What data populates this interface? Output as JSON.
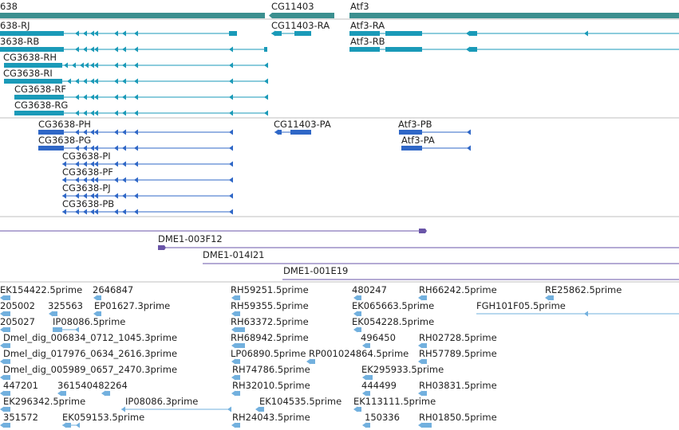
{
  "colors": {
    "gene": "#3b8f8f",
    "transcript": "#1a9ab8",
    "protein": "#2f67c7",
    "clone": "#6a55a8",
    "est": "#72b0de",
    "separator": "#bfbfbf"
  },
  "tracks": {
    "genes": {
      "features": [
        {
          "label": "638",
          "strand": "-"
        },
        {
          "label": "CG11403",
          "strand": "-"
        },
        {
          "label": "Atf3",
          "strand": "+"
        }
      ]
    },
    "transcripts": {
      "features": [
        {
          "label": "638-RJ",
          "strand": "-"
        },
        {
          "label": "3638-RB",
          "strand": "-"
        },
        {
          "label": "CG3638-RH",
          "strand": "-"
        },
        {
          "label": "CG3638-RI",
          "strand": "-"
        },
        {
          "label": "CG3638-RF",
          "strand": "-"
        },
        {
          "label": "CG3638-RG",
          "strand": "-"
        },
        {
          "label": "CG11403-RA",
          "strand": "-"
        },
        {
          "label": "Atf3-RA",
          "strand": "+"
        },
        {
          "label": "Atf3-RB",
          "strand": "+"
        }
      ]
    },
    "proteins": {
      "features": [
        {
          "label": "CG3638-PH",
          "strand": "-"
        },
        {
          "label": "CG3638-PG",
          "strand": "-"
        },
        {
          "label": "CG3638-PI",
          "strand": "-"
        },
        {
          "label": "CG3638-PF",
          "strand": "-"
        },
        {
          "label": "CG3638-PJ",
          "strand": "-"
        },
        {
          "label": "CG3638-PB",
          "strand": "-"
        },
        {
          "label": "CG11403-PA",
          "strand": "-"
        },
        {
          "label": "Atf3-PB",
          "strand": "+"
        },
        {
          "label": "Atf3-PA",
          "strand": "+"
        }
      ]
    },
    "clones": {
      "features": [
        {
          "label": "DME1-003F12",
          "strand": "+"
        },
        {
          "label": "DME1-014I21",
          "strand": "+"
        },
        {
          "label": "DME1-001E19",
          "strand": "+"
        }
      ]
    },
    "ests": {
      "features": [
        {
          "label": "EK154422.5prime"
        },
        {
          "label": "2646847"
        },
        {
          "label": "RH59251.5prime"
        },
        {
          "label": "480247"
        },
        {
          "label": "RH66242.5prime"
        },
        {
          "label": "RE25862.5prime"
        },
        {
          "label": "205002"
        },
        {
          "label": "325563"
        },
        {
          "label": "EP01627.3prime"
        },
        {
          "label": "RH59355.5prime"
        },
        {
          "label": "EK065663.5prime"
        },
        {
          "label": "FGH101F05.5prime"
        },
        {
          "label": "205027"
        },
        {
          "label": "IP08086.5prime"
        },
        {
          "label": "RH63372.5prime"
        },
        {
          "label": "EK054228.5prime"
        },
        {
          "label": "Dmel_dig_006834_0712_1045.3prime"
        },
        {
          "label": "RH68942.5prime"
        },
        {
          "label": "496450"
        },
        {
          "label": "RH02728.5prime"
        },
        {
          "label": "Dmel_dig_017976_0634_2616.3prime"
        },
        {
          "label": "LP06890.5prime"
        },
        {
          "label": "RP001024864.5prime"
        },
        {
          "label": "RH57789.5prime"
        },
        {
          "label": "Dmel_dig_005989_0657_2470.3prime"
        },
        {
          "label": "RH74786.5prime"
        },
        {
          "label": "EK295933.5prime"
        },
        {
          "label": "447201"
        },
        {
          "label": "361540482264"
        },
        {
          "label": "RH32010.5prime"
        },
        {
          "label": "444499"
        },
        {
          "label": "RH03831.5prime"
        },
        {
          "label": "EK296342.5prime"
        },
        {
          "label": "IP08086.3prime"
        },
        {
          "label": "EK104535.5prime"
        },
        {
          "label": "EK113111.5prime"
        },
        {
          "label": "351572"
        },
        {
          "label": "EK059153.5prime"
        },
        {
          "label": "RH24043.5prime"
        },
        {
          "label": "150336"
        },
        {
          "label": "RH01850.5prime"
        }
      ]
    }
  }
}
